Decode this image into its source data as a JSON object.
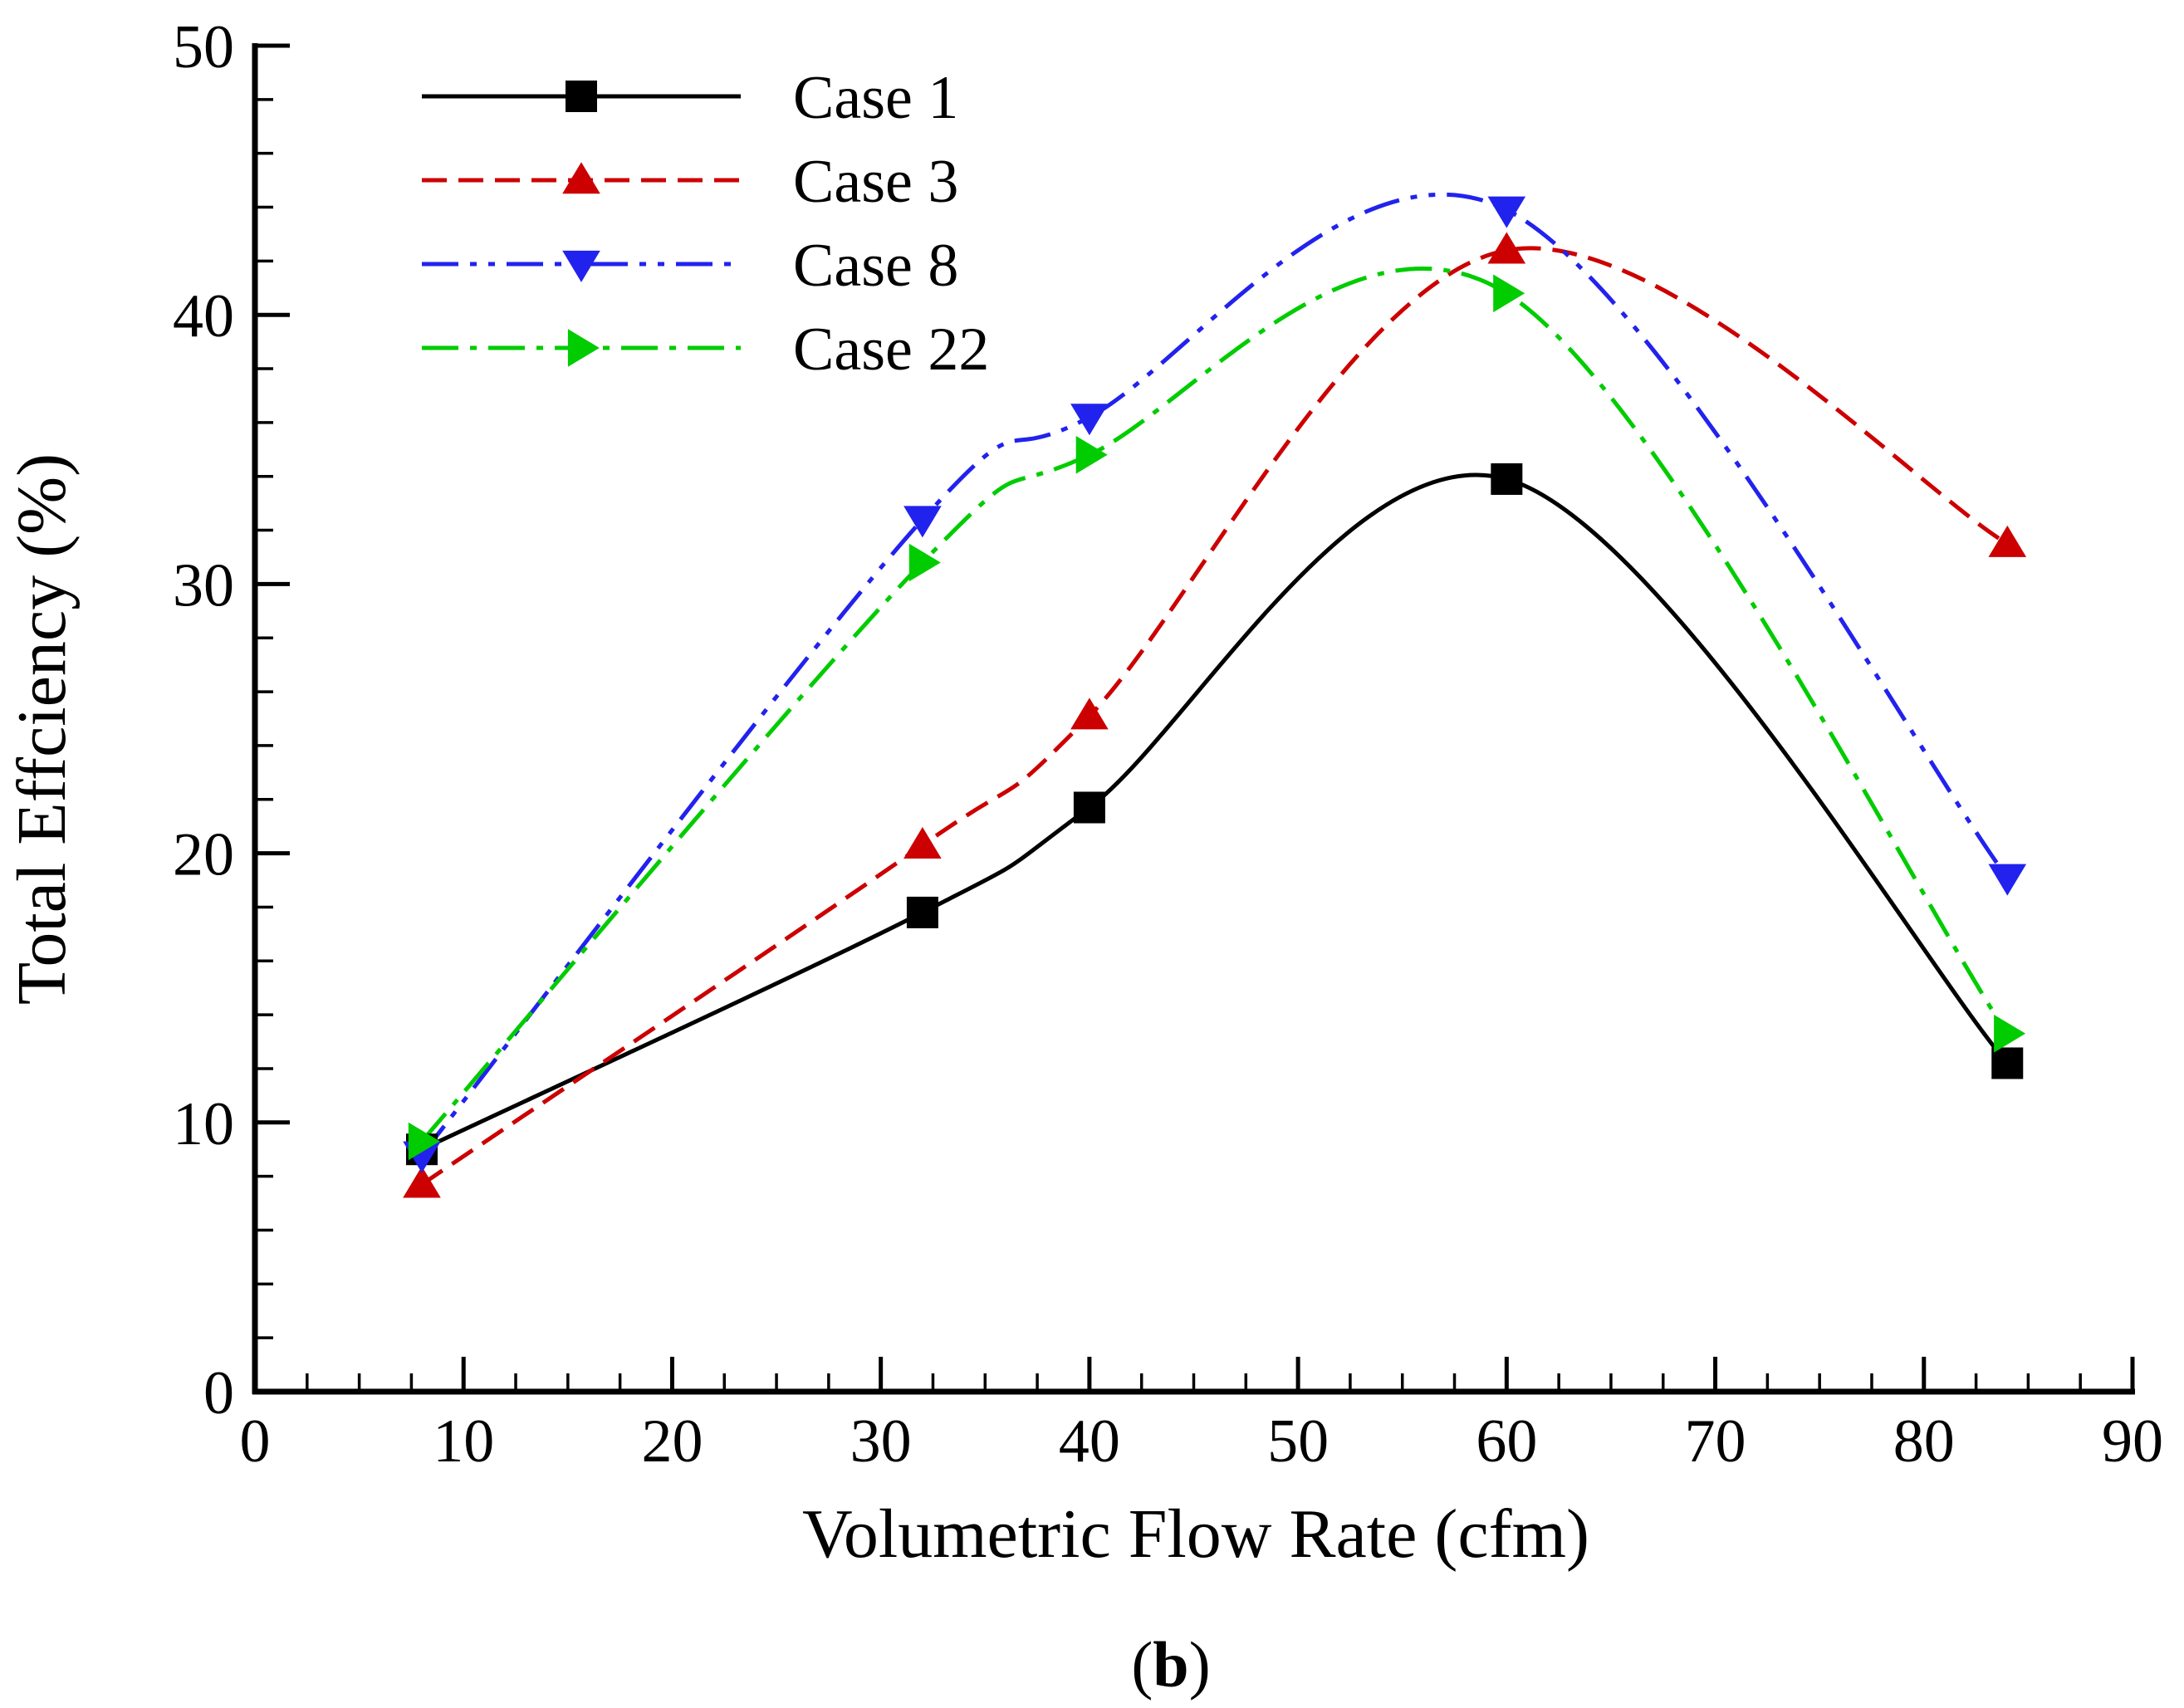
{
  "chart_data": {
    "type": "line",
    "xlabel": "Volumetric Flow Rate (cfm)",
    "ylabel": "Total Effciency (%)",
    "xlim": [
      0,
      90
    ],
    "ylim": [
      0,
      50
    ],
    "xticks": [
      0,
      10,
      20,
      30,
      40,
      50,
      60,
      70,
      80,
      90
    ],
    "xtick_labels": [
      "0",
      "10",
      "20",
      "30",
      "40",
      "50",
      "60",
      "70",
      "80",
      "90"
    ],
    "yticks": [
      0,
      10,
      20,
      30,
      40,
      50
    ],
    "ytick_labels": [
      "0",
      "10",
      "20",
      "30",
      "40",
      "50"
    ],
    "grid": false,
    "legend_position": "top-left",
    "x": [
      8,
      32,
      40,
      60,
      84
    ],
    "series": [
      {
        "name": "Case 1",
        "values": [
          9.0,
          17.8,
          21.7,
          33.9,
          12.2
        ],
        "color": "#000000",
        "marker": "square",
        "dash": "solid"
      },
      {
        "name": "Case 3",
        "values": [
          7.7,
          20.3,
          25.1,
          42.4,
          31.5
        ],
        "color": "#cc0000",
        "marker": "triangle-up",
        "dash": "dashed"
      },
      {
        "name": "Case 8",
        "values": [
          8.8,
          32.4,
          36.2,
          43.9,
          19.1
        ],
        "color": "#2222ee",
        "marker": "triangle-down",
        "dash": "dash-dot-dot"
      },
      {
        "name": "Case 22",
        "values": [
          9.3,
          30.8,
          34.8,
          40.8,
          13.3
        ],
        "color": "#00cc00",
        "marker": "triangle-right",
        "dash": "dash-dot"
      }
    ]
  },
  "caption": {
    "open": "(",
    "bold": "b",
    "close": ")"
  }
}
